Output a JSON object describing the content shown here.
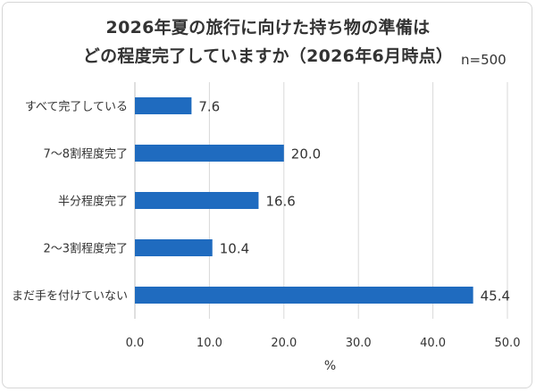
{
  "chart_data": {
    "type": "bar",
    "orientation": "horizontal",
    "title_lines": [
      "2026年夏の旅行に向けた持ち物の準備は",
      "どの程度完了していますか（2026年6月時点）"
    ],
    "sample_size": "n=500",
    "categories": [
      "すべて完了している",
      "7～8割程度完了",
      "半分程度完了",
      "2～3割程度完了",
      "まだ手を付けていない"
    ],
    "values": [
      7.6,
      20.0,
      16.6,
      10.4,
      45.4
    ],
    "value_labels": [
      "7.6",
      "20.0",
      "16.6",
      "10.4",
      "45.4"
    ],
    "xlabel": "%",
    "xlim": [
      0,
      50
    ],
    "x_ticks": [
      "0.0",
      "10.0",
      "20.0",
      "30.0",
      "40.0",
      "50.0"
    ],
    "grid": "vertical",
    "colors": {
      "bar": "#1f6bbf",
      "grid": "#d9d9d9",
      "axis": "#bfbfbf",
      "text": "#333333"
    }
  }
}
